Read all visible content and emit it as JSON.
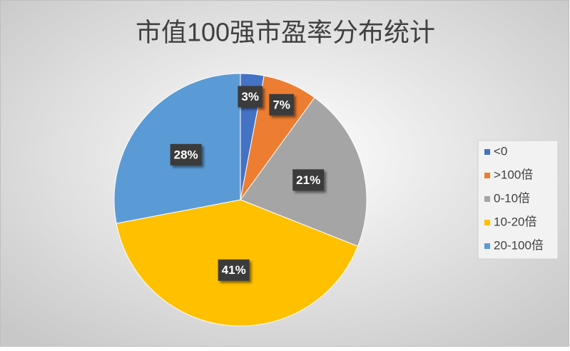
{
  "chart_data": {
    "type": "pie",
    "title": "市值100强市盈率分布统计",
    "categories": [
      "<0",
      ">100倍",
      "0-10倍",
      "10-20倍",
      "20-100倍"
    ],
    "values": [
      3,
      7,
      21,
      41,
      28
    ],
    "value_labels": [
      "3%",
      "7%",
      "21%",
      "41%",
      "28%"
    ],
    "colors": [
      "#4472c4",
      "#ed7d31",
      "#a5a5a5",
      "#ffc000",
      "#5b9bd5"
    ],
    "legend": "right"
  }
}
